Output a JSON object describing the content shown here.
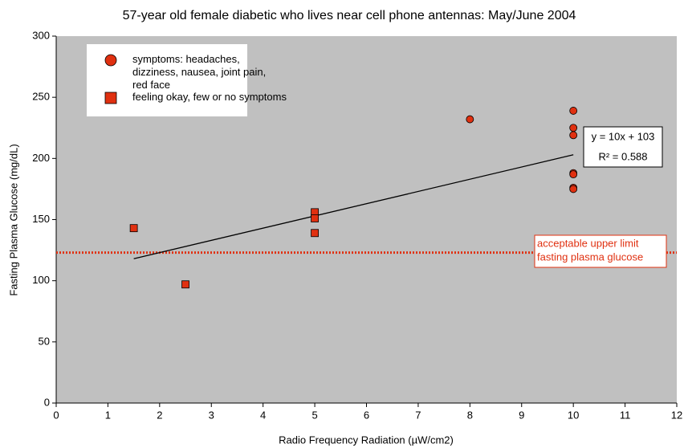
{
  "chart_data": {
    "type": "scatter",
    "title": "57-year old female diabetic who lives near cell phone antennas:  May/June 2004",
    "x_label": "Radio Frequency Radiation (µW/cm2)",
    "y_label": "Fasting Plasma Glucose (mg/dL)",
    "series": [
      {
        "name": "symptoms: headaches, dizziness, nausea, joint pain, red face",
        "marker": "circle",
        "color": "#e03010",
        "x": [
          8,
          10,
          10,
          10,
          10,
          10,
          10,
          10
        ],
        "values": [
          232,
          239,
          225,
          219,
          188,
          187,
          176,
          175
        ]
      },
      {
        "name": "feeling okay, few or no symptoms",
        "marker": "square",
        "color": "#e03010",
        "x": [
          1.5,
          2.5,
          5,
          5,
          5
        ],
        "values": [
          143,
          97,
          156,
          151,
          139
        ]
      }
    ],
    "trendline": {
      "slope": 10,
      "intercept": 103,
      "equation": "y = 10x + 103",
      "r2": "R² = 0.588"
    },
    "reference_line": {
      "value": 123,
      "color": "#e03010",
      "label": [
        "acceptable upper limit",
        "fasting plasma glucose"
      ]
    },
    "xlim": [
      0,
      12
    ],
    "xticks": [
      0,
      1,
      2,
      3,
      4,
      5,
      6,
      7,
      8,
      9,
      10,
      11,
      12
    ],
    "ylim": [
      0,
      300
    ],
    "yticks": [
      0,
      50,
      100,
      150,
      200,
      250,
      300
    ],
    "background": "#c0c0c0"
  }
}
